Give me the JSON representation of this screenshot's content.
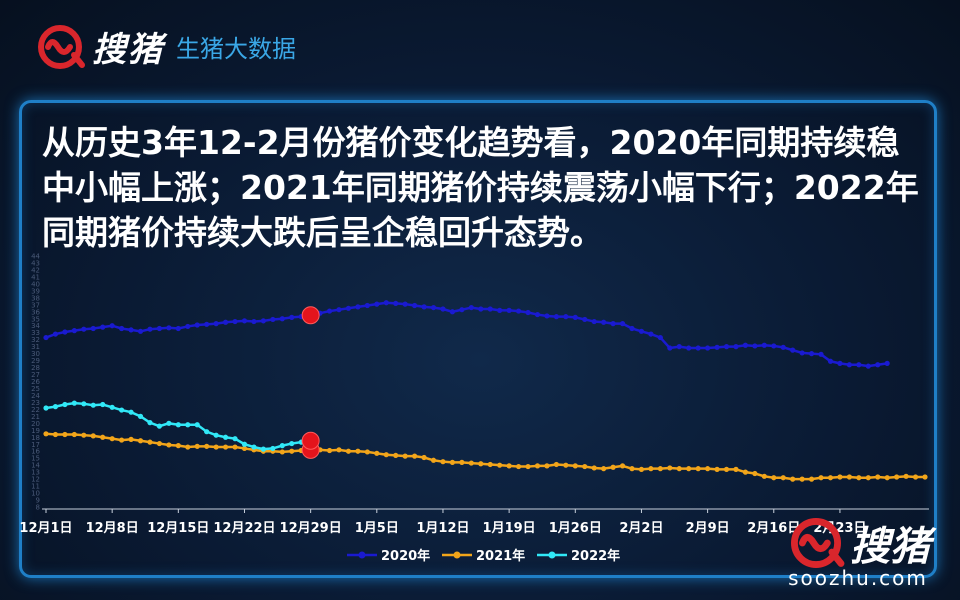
{
  "brand": {
    "logo_text": "搜猪",
    "subtitle": "生猪大数据",
    "watermark_text": "搜猪",
    "watermark_url": "soozhu.com",
    "accent": "#d9262c"
  },
  "headline": "从历史3年12-2月份猪价变化趋势看，2020年同期持续稳中小幅上涨；2021年同期猪价持续震荡小幅下行；2022年同期猪价持续大跌后呈企稳回升态势。",
  "chart_data": {
    "type": "line",
    "ylim": [
      8,
      44
    ],
    "yticks": [
      8,
      9,
      10,
      11,
      12,
      13,
      14,
      15,
      16,
      17,
      18,
      19,
      20,
      21,
      22,
      23,
      24,
      25,
      26,
      27,
      28,
      29,
      30,
      31,
      32,
      33,
      34,
      35,
      36,
      37,
      38,
      39,
      40,
      41,
      42,
      43,
      44
    ],
    "xticks": [
      "12月1日",
      "12月8日",
      "12月15日",
      "12月22日",
      "12月29日",
      "1月5日",
      "1月12日",
      "1月19日",
      "1月26日",
      "2月2日",
      "2月9日",
      "2月16日",
      "2月23日"
    ],
    "legend_position": "bottom",
    "series": [
      {
        "name": "2020年",
        "color": "#1a1ad0",
        "values": [
          32.3,
          32.8,
          33.1,
          33.3,
          33.5,
          33.6,
          33.8,
          34.0,
          33.6,
          33.4,
          33.2,
          33.5,
          33.6,
          33.7,
          33.6,
          33.9,
          34.1,
          34.2,
          34.3,
          34.5,
          34.6,
          34.7,
          34.6,
          34.7,
          34.9,
          35.0,
          35.2,
          35.3,
          35.5,
          35.8,
          36.1,
          36.3,
          36.5,
          36.7,
          36.9,
          37.1,
          37.3,
          37.2,
          37.1,
          36.9,
          36.7,
          36.6,
          36.4,
          36.0,
          36.3,
          36.6,
          36.4,
          36.4,
          36.2,
          36.2,
          36.1,
          35.9,
          35.6,
          35.4,
          35.3,
          35.3,
          35.2,
          34.9,
          34.6,
          34.5,
          34.3,
          34.3,
          33.6,
          33.2,
          32.8,
          32.3,
          30.8,
          31.0,
          30.8,
          30.8,
          30.8,
          30.9,
          31.0,
          31.0,
          31.2,
          31.1,
          31.2,
          31.1,
          30.9,
          30.5,
          30.1,
          30.0,
          29.9,
          28.9,
          28.6,
          28.4,
          28.4,
          28.2,
          28.4,
          28.6
        ]
      },
      {
        "name": "2021年",
        "color": "#f2a51a",
        "values": [
          18.5,
          18.4,
          18.4,
          18.4,
          18.3,
          18.2,
          18.0,
          17.8,
          17.6,
          17.7,
          17.5,
          17.3,
          17.1,
          16.9,
          16.8,
          16.6,
          16.7,
          16.7,
          16.6,
          16.6,
          16.6,
          16.4,
          16.2,
          16.0,
          16.0,
          15.9,
          16.0,
          16.1,
          16.2,
          16.2,
          16.1,
          16.2,
          16.0,
          16.0,
          15.9,
          15.7,
          15.5,
          15.4,
          15.3,
          15.3,
          15.1,
          14.7,
          14.5,
          14.4,
          14.4,
          14.3,
          14.2,
          14.1,
          14.0,
          13.9,
          13.8,
          13.8,
          13.9,
          13.9,
          14.1,
          14.0,
          13.9,
          13.8,
          13.6,
          13.5,
          13.7,
          13.9,
          13.5,
          13.4,
          13.5,
          13.5,
          13.6,
          13.5,
          13.5,
          13.5,
          13.5,
          13.4,
          13.4,
          13.4,
          13.0,
          12.8,
          12.4,
          12.2,
          12.2,
          12.0,
          12.0,
          12.0,
          12.2,
          12.2,
          12.3,
          12.3,
          12.2,
          12.2,
          12.3,
          12.2,
          12.3,
          12.4,
          12.3,
          12.3
        ]
      },
      {
        "name": "2022年",
        "color": "#31e8f7",
        "values": [
          22.2,
          22.4,
          22.7,
          22.9,
          22.8,
          22.6,
          22.7,
          22.3,
          21.9,
          21.6,
          21.0,
          20.1,
          19.6,
          20.0,
          19.8,
          19.8,
          19.8,
          18.8,
          18.3,
          18.0,
          17.8,
          17.0,
          16.6,
          16.3,
          16.4,
          16.8,
          17.1,
          17.3,
          17.5
        ]
      }
    ],
    "highlight_index": 28
  }
}
